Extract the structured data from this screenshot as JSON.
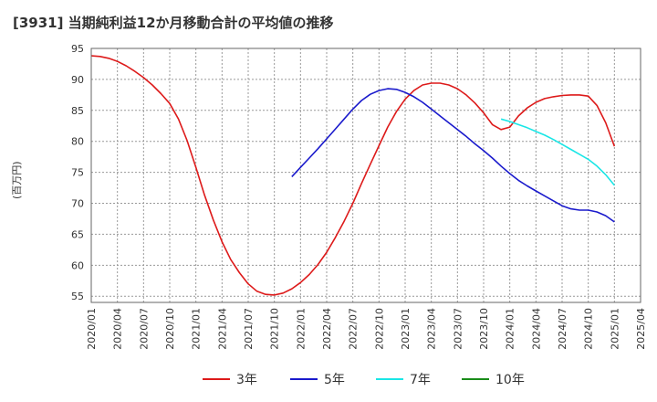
{
  "chart_data": {
    "type": "line",
    "title": "[3931]  当期純利益12か月移動合計の平均値の推移",
    "xlabel": "",
    "ylabel": "(百万円)",
    "ylim": [
      54,
      95
    ],
    "yticks": [
      55,
      60,
      65,
      70,
      75,
      80,
      85,
      90,
      95
    ],
    "xlim": [
      "2020/01",
      "2025/04"
    ],
    "xticks": [
      "2020/01",
      "2020/04",
      "2020/07",
      "2020/10",
      "2021/01",
      "2021/04",
      "2021/07",
      "2021/10",
      "2022/01",
      "2022/04",
      "2022/07",
      "2022/10",
      "2023/01",
      "2023/04",
      "2023/07",
      "2023/10",
      "2024/01",
      "2024/04",
      "2024/07",
      "2024/10",
      "2025/01",
      "2025/04"
    ],
    "grid": true,
    "legend_position": "bottom",
    "series": [
      {
        "name": "3年",
        "color": "#dd1a1a",
        "points": [
          [
            "2020/01",
            93.8
          ],
          [
            "2020/02",
            93.7
          ],
          [
            "2020/03",
            93.4
          ],
          [
            "2020/04",
            92.9
          ],
          [
            "2020/05",
            92.2
          ],
          [
            "2020/06",
            91.3
          ],
          [
            "2020/07",
            90.3
          ],
          [
            "2020/08",
            89.1
          ],
          [
            "2020/09",
            87.7
          ],
          [
            "2020/10",
            86.1
          ],
          [
            "2020/11",
            83.6
          ],
          [
            "2020/12",
            80.1
          ],
          [
            "2021/01",
            75.8
          ],
          [
            "2021/02",
            71.3
          ],
          [
            "2021/03",
            67.3
          ],
          [
            "2021/04",
            63.8
          ],
          [
            "2021/05",
            60.9
          ],
          [
            "2021/06",
            58.8
          ],
          [
            "2021/07",
            57.0
          ],
          [
            "2021/08",
            55.8
          ],
          [
            "2021/09",
            55.3
          ],
          [
            "2021/10",
            55.2
          ],
          [
            "2021/11",
            55.5
          ],
          [
            "2021/12",
            56.2
          ],
          [
            "2022/01",
            57.2
          ],
          [
            "2022/02",
            58.5
          ],
          [
            "2022/03",
            60.1
          ],
          [
            "2022/04",
            62.1
          ],
          [
            "2022/05",
            64.5
          ],
          [
            "2022/06",
            67.1
          ],
          [
            "2022/07",
            70.0
          ],
          [
            "2022/08",
            73.2
          ],
          [
            "2022/09",
            76.3
          ],
          [
            "2022/10",
            79.3
          ],
          [
            "2022/11",
            82.3
          ],
          [
            "2022/12",
            84.8
          ],
          [
            "2023/01",
            86.8
          ],
          [
            "2023/02",
            88.2
          ],
          [
            "2023/03",
            89.1
          ],
          [
            "2023/04",
            89.4
          ],
          [
            "2023/05",
            89.4
          ],
          [
            "2023/06",
            89.1
          ],
          [
            "2023/07",
            88.5
          ],
          [
            "2023/08",
            87.5
          ],
          [
            "2023/09",
            86.2
          ],
          [
            "2023/10",
            84.6
          ],
          [
            "2023/11",
            82.7
          ],
          [
            "2023/12",
            81.9
          ],
          [
            "2024/01",
            82.3
          ],
          [
            "2024/02",
            84.1
          ],
          [
            "2024/03",
            85.4
          ],
          [
            "2024/04",
            86.3
          ],
          [
            "2024/05",
            86.9
          ],
          [
            "2024/06",
            87.2
          ],
          [
            "2024/07",
            87.4
          ],
          [
            "2024/08",
            87.5
          ],
          [
            "2024/09",
            87.5
          ],
          [
            "2024/10",
            87.3
          ],
          [
            "2024/11",
            85.8
          ],
          [
            "2024/12",
            83.0
          ],
          [
            "2025/01",
            79.2
          ]
        ]
      },
      {
        "name": "5年",
        "color": "#1a1acc",
        "points": [
          [
            "2021/12",
            74.3
          ],
          [
            "2022/01",
            75.8
          ],
          [
            "2022/02",
            77.3
          ],
          [
            "2022/03",
            78.8
          ],
          [
            "2022/04",
            80.4
          ],
          [
            "2022/05",
            82.0
          ],
          [
            "2022/06",
            83.6
          ],
          [
            "2022/07",
            85.2
          ],
          [
            "2022/08",
            86.6
          ],
          [
            "2022/09",
            87.6
          ],
          [
            "2022/10",
            88.2
          ],
          [
            "2022/11",
            88.5
          ],
          [
            "2022/12",
            88.4
          ],
          [
            "2023/01",
            87.9
          ],
          [
            "2023/02",
            87.2
          ],
          [
            "2023/03",
            86.3
          ],
          [
            "2023/04",
            85.2
          ],
          [
            "2023/05",
            84.1
          ],
          [
            "2023/06",
            83.0
          ],
          [
            "2023/07",
            81.9
          ],
          [
            "2023/08",
            80.8
          ],
          [
            "2023/09",
            79.6
          ],
          [
            "2023/10",
            78.5
          ],
          [
            "2023/11",
            77.3
          ],
          [
            "2023/12",
            76.0
          ],
          [
            "2024/01",
            74.8
          ],
          [
            "2024/02",
            73.7
          ],
          [
            "2024/03",
            72.8
          ],
          [
            "2024/04",
            72.0
          ],
          [
            "2024/05",
            71.2
          ],
          [
            "2024/06",
            70.4
          ],
          [
            "2024/07",
            69.6
          ],
          [
            "2024/08",
            69.1
          ],
          [
            "2024/09",
            68.9
          ],
          [
            "2024/10",
            68.9
          ],
          [
            "2024/11",
            68.6
          ],
          [
            "2024/12",
            68.0
          ],
          [
            "2025/01",
            67.0
          ]
        ]
      },
      {
        "name": "7年",
        "color": "#1ae6e6",
        "points": [
          [
            "2023/12",
            83.6
          ],
          [
            "2024/01",
            83.2
          ],
          [
            "2024/02",
            82.7
          ],
          [
            "2024/03",
            82.2
          ],
          [
            "2024/04",
            81.6
          ],
          [
            "2024/05",
            81.0
          ],
          [
            "2024/06",
            80.3
          ],
          [
            "2024/07",
            79.5
          ],
          [
            "2024/08",
            78.7
          ],
          [
            "2024/09",
            77.9
          ],
          [
            "2024/10",
            77.1
          ],
          [
            "2024/11",
            76.0
          ],
          [
            "2024/12",
            74.6
          ],
          [
            "2025/01",
            72.9
          ]
        ]
      },
      {
        "name": "10年",
        "color": "#1a8c1a",
        "points": []
      }
    ]
  }
}
